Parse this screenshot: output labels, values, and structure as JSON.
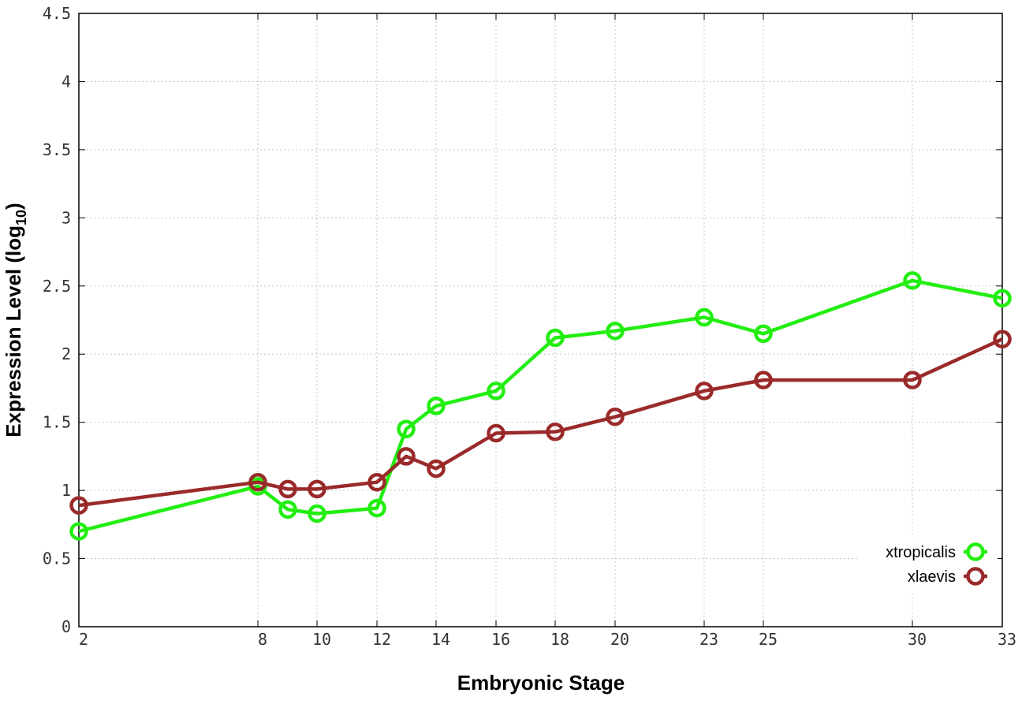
{
  "chart_data": {
    "type": "line",
    "xlabel": "Embryonic Stage",
    "ylabel_main": "Expression Level (log",
    "ylabel_sub": "10",
    "ylabel_close": ")",
    "x_scale": "ordinal-stage",
    "xticks": [
      2,
      8,
      10,
      12,
      14,
      16,
      18,
      20,
      23,
      25,
      30,
      33
    ],
    "xtick_labels": [
      "2",
      "8",
      "10",
      "12",
      "14",
      "16",
      "18",
      "20",
      "23",
      "25",
      "30",
      "33"
    ],
    "ylim": [
      0,
      4.5
    ],
    "yticks": [
      0,
      0.5,
      1,
      1.5,
      2,
      2.5,
      3,
      3.5,
      4,
      4.5
    ],
    "ytick_labels": [
      "0",
      "0.5",
      "1",
      "1.5",
      "2",
      "2.5",
      "3",
      "3.5",
      "4",
      "4.5"
    ],
    "grid": true,
    "legend_position": "bottom-right",
    "x": [
      2,
      8,
      9,
      10,
      12,
      13,
      14,
      16,
      18,
      20,
      23,
      25,
      30,
      33
    ],
    "series": [
      {
        "name": "xtropicalis",
        "color": "#22ee11",
        "marker": "circle",
        "values": [
          0.7,
          1.03,
          0.86,
          0.83,
          0.87,
          1.45,
          1.62,
          1.73,
          2.12,
          2.17,
          2.27,
          2.15,
          2.54,
          2.41
        ]
      },
      {
        "name": "xlaevis",
        "color": "#9a2a2a",
        "marker": "circle",
        "values": [
          0.89,
          1.06,
          1.01,
          1.01,
          1.06,
          1.25,
          1.16,
          1.42,
          1.43,
          1.54,
          1.73,
          1.81,
          1.81,
          2.11
        ]
      }
    ]
  }
}
